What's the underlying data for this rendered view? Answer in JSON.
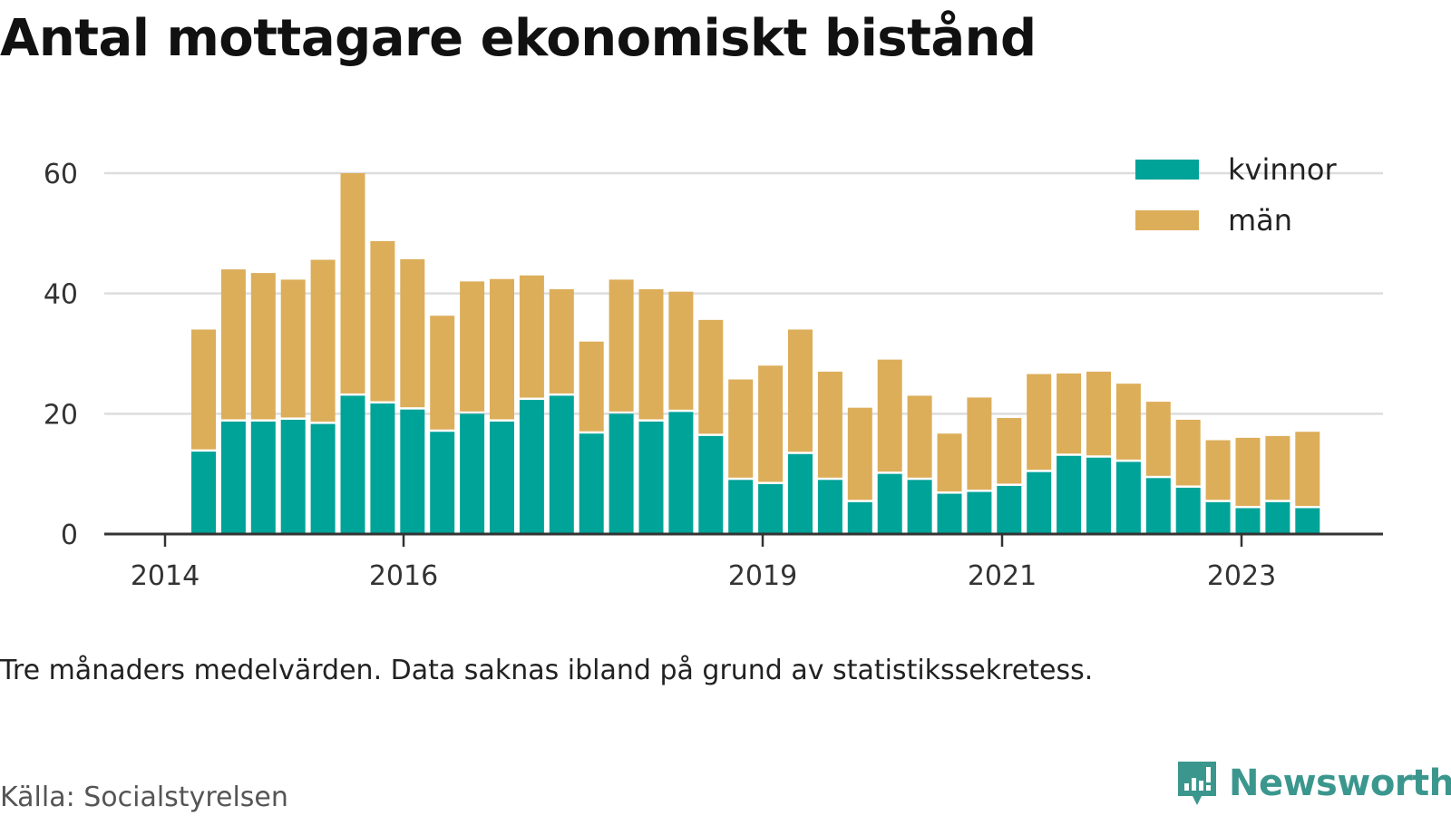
{
  "title": "Antal mottagare ekonomiskt bistånd",
  "note": "Tre månaders medelvärden. Data saknas ibland på grund av statistikssekretess.",
  "source": "Källa: Socialstyrelsen",
  "brand": "Newsworthy",
  "colors": {
    "kvinnor": "#00a398",
    "man": "#dcae5a",
    "grid": "#dddddd",
    "axis": "#333333",
    "brand": "#3b978e"
  },
  "chart_data": {
    "type": "bar",
    "stacked": true,
    "x_ticks": [
      "2014",
      "2016",
      "2019",
      "2021",
      "2023"
    ],
    "y_ticks": [
      "0",
      "20",
      "40",
      "60"
    ],
    "ylim": [
      0,
      64
    ],
    "grid": true,
    "legend_position": "top-right",
    "series": [
      {
        "name": "kvinnor",
        "values": [
          13.7,
          18.7,
          18.7,
          19.0,
          18.3,
          23.0,
          21.7,
          20.7,
          17.0,
          20.0,
          18.7,
          22.3,
          23.0,
          16.7,
          20.0,
          18.7,
          20.3,
          16.3,
          9.0,
          8.3,
          13.3,
          9.0,
          5.3,
          10.0,
          9.0,
          6.7,
          7.0,
          8.0,
          10.3,
          13.0,
          12.7,
          12.0,
          9.3,
          7.7,
          5.3,
          4.3,
          5.3,
          4.3
        ]
      },
      {
        "name": "män",
        "values": [
          20.3,
          25.3,
          24.7,
          23.3,
          27.3,
          37.0,
          27.0,
          25.0,
          19.3,
          22.0,
          23.7,
          20.7,
          17.7,
          15.3,
          22.3,
          22.0,
          20.0,
          19.3,
          16.7,
          19.7,
          20.7,
          18.0,
          15.7,
          19.0,
          14.0,
          10.0,
          15.7,
          11.3,
          16.3,
          13.7,
          14.3,
          13.0,
          12.7,
          11.3,
          10.3,
          11.7,
          11.0,
          12.7
        ]
      }
    ]
  }
}
